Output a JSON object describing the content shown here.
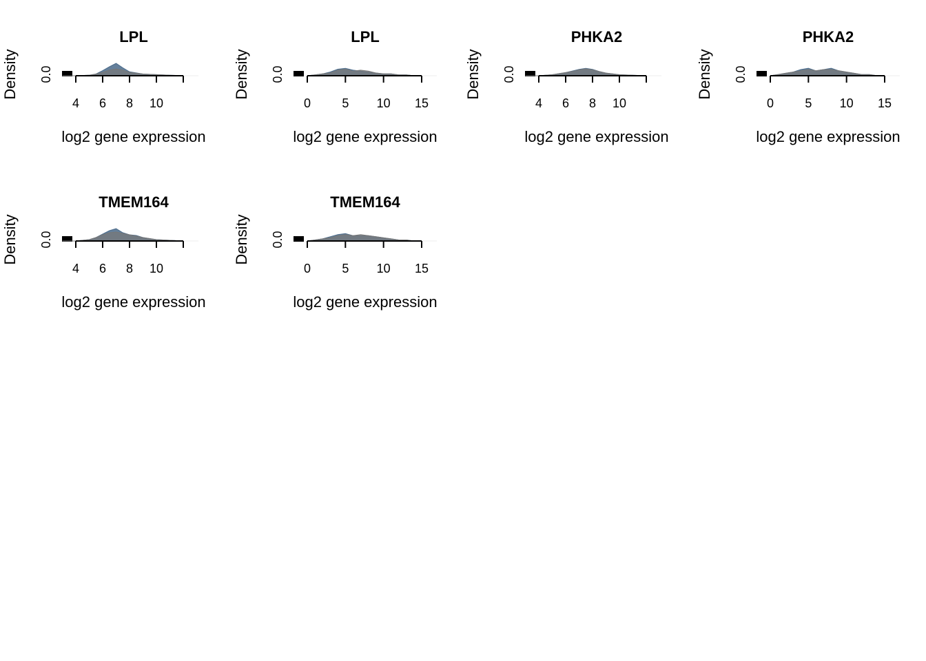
{
  "chart_data": [
    {
      "type": "area",
      "title": "LPL",
      "xlabel": "log2 gene expression",
      "ylabel": "Density",
      "y_ticks": [
        "0.0"
      ],
      "x_ticks": [
        4,
        6,
        8,
        10
      ],
      "xlim": [
        3.0,
        12.0
      ],
      "x": [
        3.0,
        4.0,
        5.0,
        5.5,
        6.0,
        6.5,
        7.0,
        7.5,
        8.0,
        9.0,
        10.0,
        11.0,
        12.0
      ],
      "series": [
        {
          "color": "#4a6a8a",
          "values": [
            0.0,
            0.0,
            0.01,
            0.03,
            0.09,
            0.16,
            0.22,
            0.14,
            0.07,
            0.03,
            0.02,
            0.01,
            0.0
          ]
        },
        {
          "color": "#777777",
          "values": [
            0.0,
            0.0,
            0.01,
            0.03,
            0.06,
            0.1,
            0.12,
            0.1,
            0.06,
            0.03,
            0.02,
            0.01,
            0.0
          ]
        }
      ]
    },
    {
      "type": "area",
      "title": "LPL",
      "xlabel": "log2 gene expression",
      "ylabel": "Density",
      "y_ticks": [
        "0.0"
      ],
      "x_ticks": [
        0,
        5,
        10,
        15
      ],
      "xlim": [
        0,
        15
      ],
      "x": [
        0,
        1,
        2,
        3,
        4,
        5,
        6,
        7,
        8,
        9,
        10,
        11,
        12,
        13,
        14,
        15
      ],
      "series": [
        {
          "color": "#4a6a8a",
          "values": [
            0.0,
            0.01,
            0.02,
            0.04,
            0.07,
            0.08,
            0.06,
            0.05,
            0.04,
            0.03,
            0.02,
            0.02,
            0.01,
            0.01,
            0.0,
            0.0
          ]
        },
        {
          "color": "#777777",
          "values": [
            0.0,
            0.01,
            0.02,
            0.03,
            0.06,
            0.07,
            0.05,
            0.06,
            0.05,
            0.03,
            0.02,
            0.02,
            0.01,
            0.01,
            0.0,
            0.0
          ]
        }
      ]
    },
    {
      "type": "area",
      "title": "PHKA2",
      "xlabel": "log2 gene expression",
      "ylabel": "Density",
      "y_ticks": [
        "0.0"
      ],
      "x_ticks": [
        4,
        6,
        8,
        10
      ],
      "xlim": [
        3.0,
        12.0
      ],
      "x": [
        3.0,
        4.0,
        5.0,
        6.0,
        6.5,
        7.0,
        7.5,
        8.0,
        8.5,
        9.0,
        10.0,
        11.0,
        12.0
      ],
      "series": [
        {
          "color": "#4a6a8a",
          "values": [
            0.0,
            0.0,
            0.02,
            0.06,
            0.09,
            0.12,
            0.14,
            0.12,
            0.08,
            0.05,
            0.02,
            0.01,
            0.0
          ]
        },
        {
          "color": "#777777",
          "values": [
            0.0,
            0.0,
            0.02,
            0.06,
            0.08,
            0.11,
            0.13,
            0.11,
            0.08,
            0.05,
            0.02,
            0.01,
            0.0
          ]
        }
      ]
    },
    {
      "type": "area",
      "title": "PHKA2",
      "xlabel": "log2 gene expression",
      "ylabel": "Density",
      "y_ticks": [
        "0.0"
      ],
      "x_ticks": [
        0,
        5,
        10,
        15
      ],
      "xlim": [
        0,
        15
      ],
      "x": [
        0,
        1,
        2,
        3,
        4,
        5,
        6,
        7,
        8,
        9,
        10,
        11,
        12,
        13,
        14,
        15
      ],
      "series": [
        {
          "color": "#4a6a8a",
          "values": [
            0.0,
            0.01,
            0.02,
            0.03,
            0.05,
            0.06,
            0.04,
            0.05,
            0.06,
            0.04,
            0.03,
            0.02,
            0.01,
            0.01,
            0.0,
            0.0
          ]
        },
        {
          "color": "#777777",
          "values": [
            0.0,
            0.01,
            0.02,
            0.03,
            0.04,
            0.05,
            0.04,
            0.05,
            0.05,
            0.04,
            0.03,
            0.02,
            0.01,
            0.01,
            0.0,
            0.0
          ]
        }
      ]
    },
    {
      "type": "area",
      "title": "TMEM164",
      "xlabel": "log2 gene expression",
      "ylabel": "Density",
      "y_ticks": [
        "0.0"
      ],
      "x_ticks": [
        4,
        6,
        8,
        10
      ],
      "xlim": [
        3.0,
        12.0
      ],
      "x": [
        3.0,
        4.0,
        5.0,
        5.5,
        6.0,
        6.5,
        7.0,
        7.5,
        8.0,
        8.5,
        9.0,
        10.0,
        11.0,
        12.0
      ],
      "series": [
        {
          "color": "#4a6a8a",
          "values": [
            0.0,
            0.0,
            0.02,
            0.05,
            0.1,
            0.15,
            0.18,
            0.12,
            0.09,
            0.08,
            0.05,
            0.02,
            0.01,
            0.0
          ]
        },
        {
          "color": "#777777",
          "values": [
            0.0,
            0.0,
            0.02,
            0.05,
            0.09,
            0.12,
            0.13,
            0.11,
            0.09,
            0.07,
            0.05,
            0.02,
            0.01,
            0.0
          ]
        }
      ]
    },
    {
      "type": "area",
      "title": "TMEM164",
      "xlabel": "log2 gene expression",
      "ylabel": "Density",
      "y_ticks": [
        "0.0"
      ],
      "x_ticks": [
        0,
        5,
        10,
        15
      ],
      "xlim": [
        0,
        15
      ],
      "x": [
        0,
        1,
        2,
        3,
        4,
        5,
        6,
        7,
        8,
        9,
        10,
        11,
        12,
        13,
        14,
        15
      ],
      "series": [
        {
          "color": "#4a6a8a",
          "values": [
            0.0,
            0.01,
            0.02,
            0.04,
            0.06,
            0.07,
            0.05,
            0.05,
            0.05,
            0.04,
            0.03,
            0.02,
            0.01,
            0.01,
            0.0,
            0.0
          ]
        },
        {
          "color": "#777777",
          "values": [
            0.0,
            0.01,
            0.02,
            0.03,
            0.05,
            0.06,
            0.05,
            0.06,
            0.05,
            0.04,
            0.03,
            0.02,
            0.01,
            0.01,
            0.0,
            0.0
          ]
        }
      ]
    }
  ]
}
